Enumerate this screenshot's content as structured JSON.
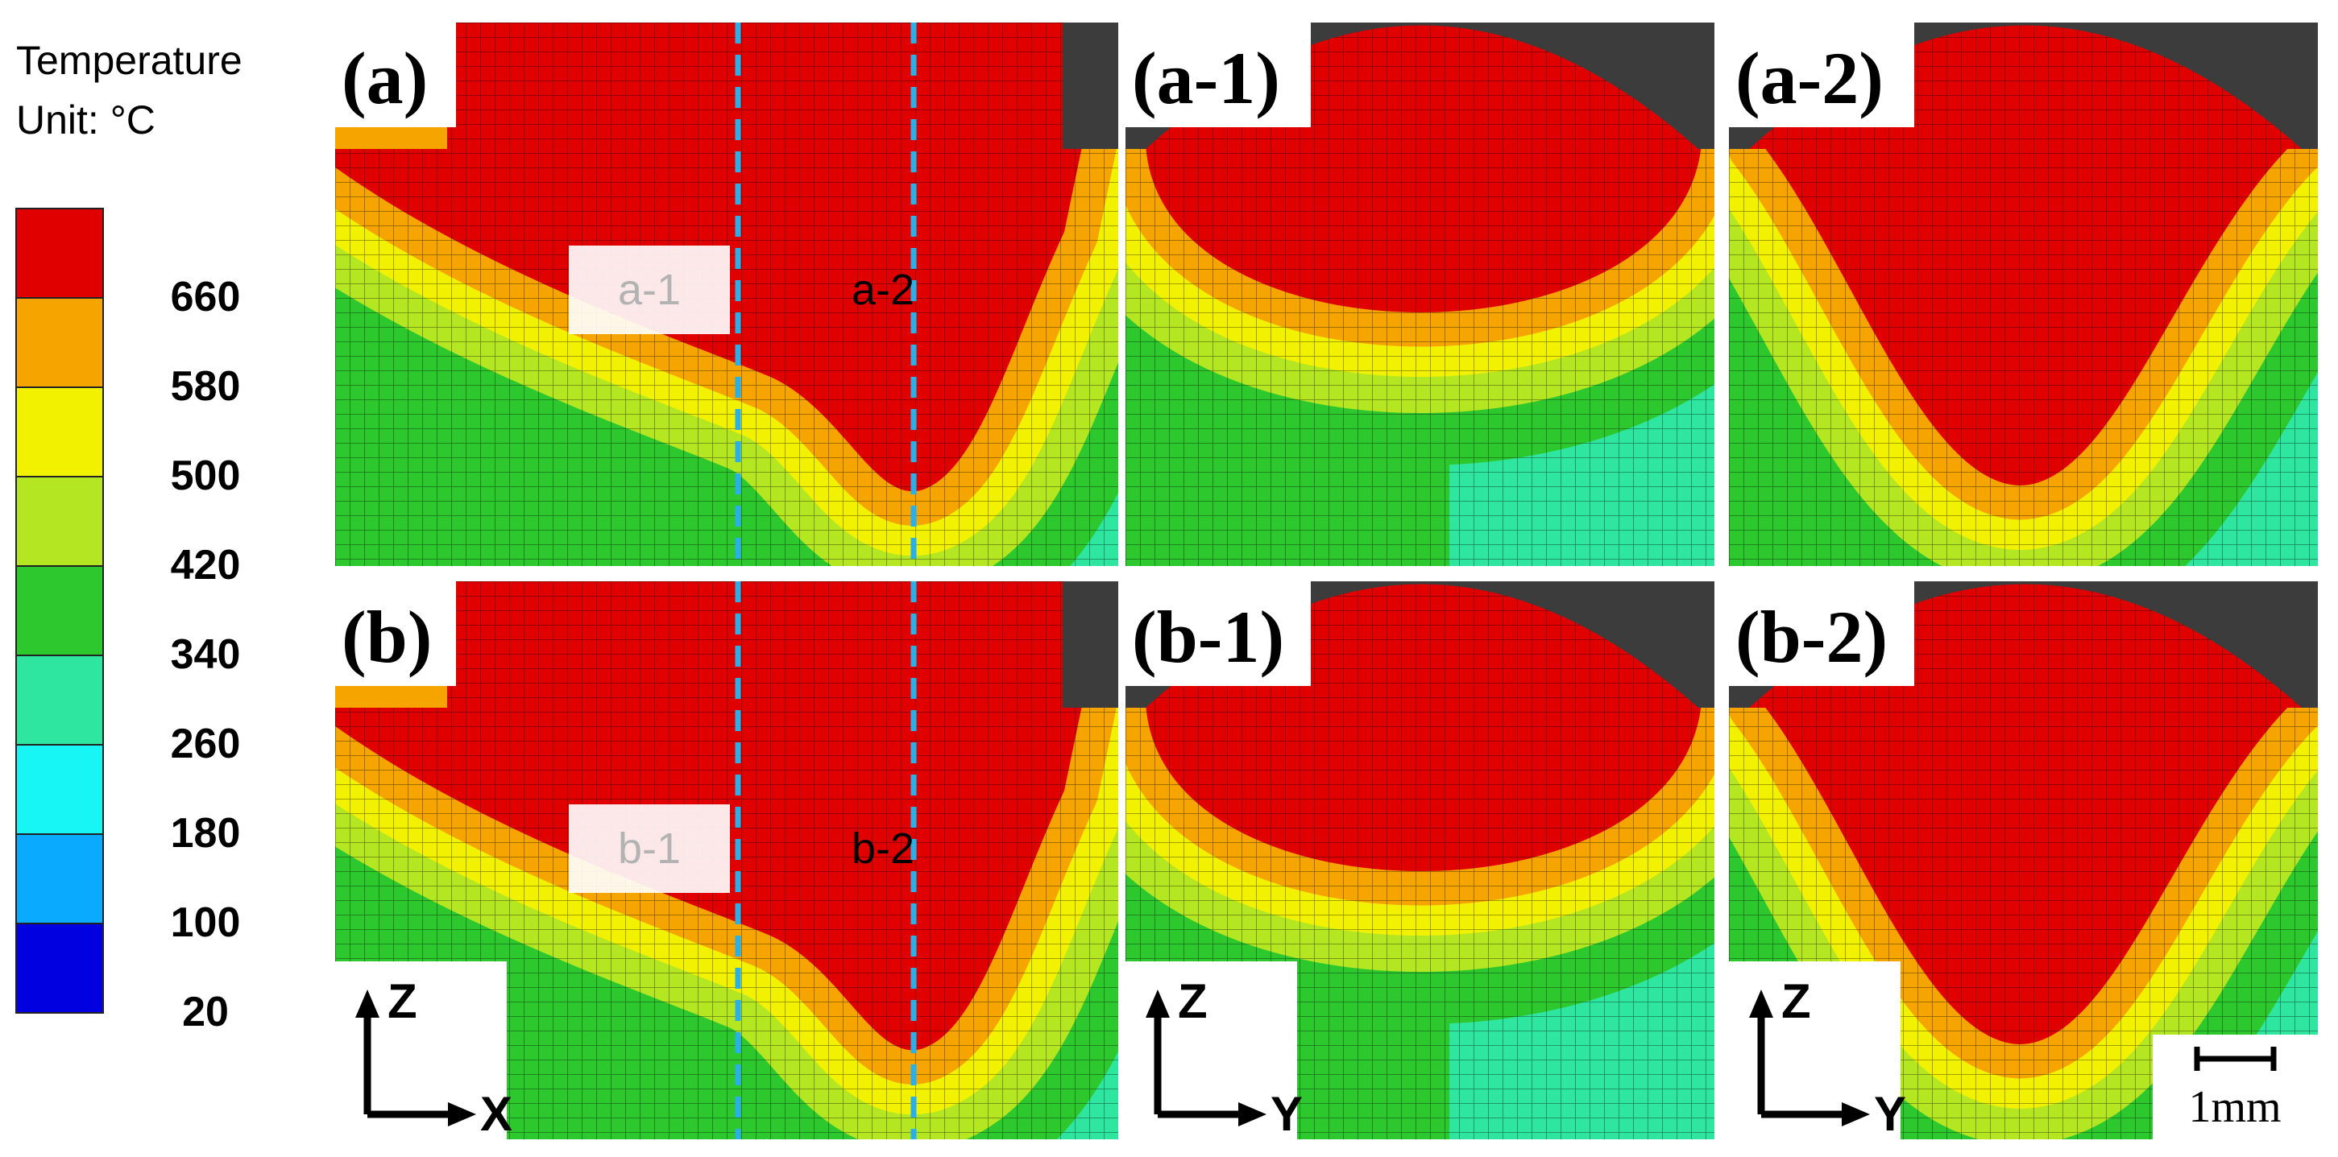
{
  "legend": {
    "title": "Temperature",
    "unit": "Unit: °C",
    "ticks": [
      660,
      580,
      500,
      420,
      340,
      260,
      180,
      100,
      20
    ],
    "colors": [
      "#e00000",
      "#f5a400",
      "#f2f200",
      "#b4e622",
      "#2dc82d",
      "#2ee6a0",
      "#18f5f5",
      "#0aaaff",
      "#0000e0"
    ]
  },
  "panels": [
    {
      "label": "(a)"
    },
    {
      "label": "(a-1)"
    },
    {
      "label": "(a-2)"
    },
    {
      "label": "(b)"
    },
    {
      "label": "(b-1)"
    },
    {
      "label": "(b-2)"
    }
  ],
  "section_labels": [
    "a-1",
    "a-2",
    "b-1",
    "b-2"
  ],
  "axes": [
    {
      "vertical": "Z",
      "horizontal": "X"
    },
    {
      "vertical": "Z",
      "horizontal": "Y"
    },
    {
      "vertical": "Z",
      "horizontal": "Y"
    }
  ],
  "scale_bar": "1mm"
}
